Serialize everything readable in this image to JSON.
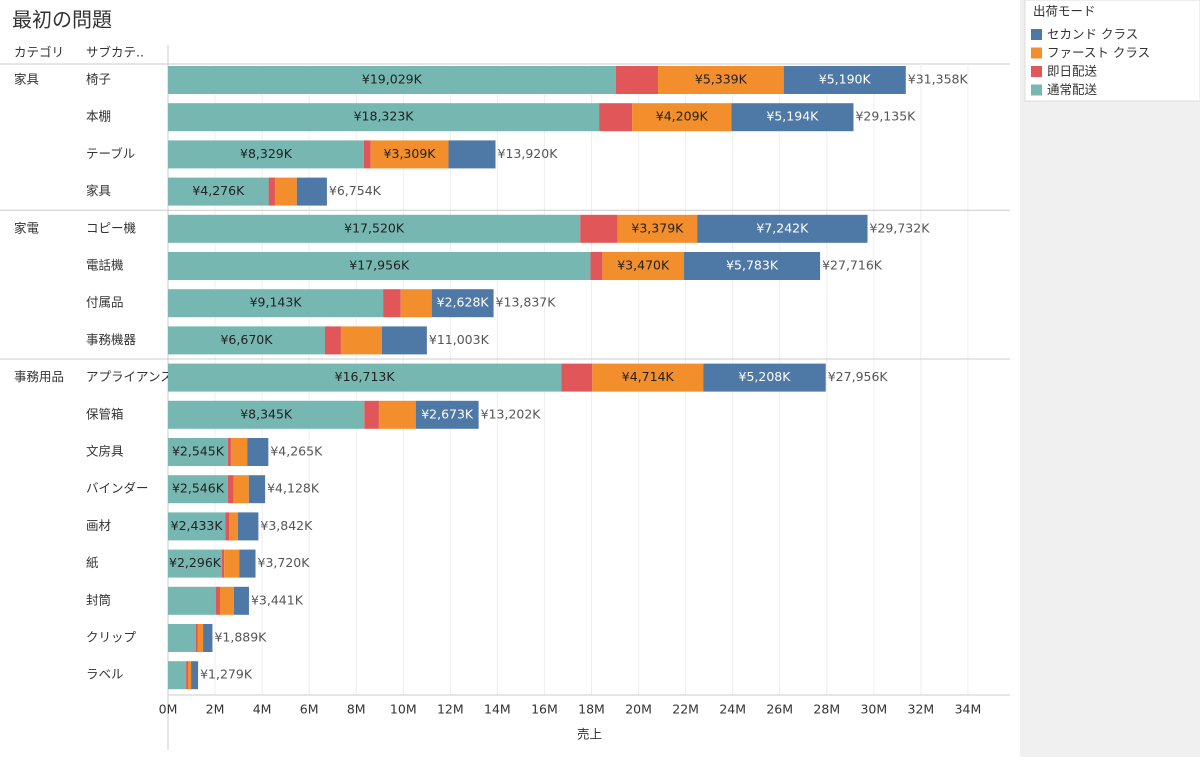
{
  "chart_data": {
    "type": "stacked-bar-horizontal",
    "title": "最初の問題",
    "header_labels": [
      "カテゴリ",
      "サブカテ.."
    ],
    "x_label": "売上",
    "legend_title": "出荷モード",
    "category_group": [
      "家具",
      null,
      null,
      null,
      "家電",
      null,
      null,
      null,
      "事務用品",
      null,
      null,
      null,
      null,
      null,
      null,
      null,
      null
    ],
    "categories": [
      "椅子",
      "本棚",
      "テーブル",
      "家具",
      "コピー機",
      "電話機",
      "付属品",
      "事務機器",
      "アプライアンス",
      "保管箱",
      "文房具",
      "バインダー",
      "画材",
      "紙",
      "封筒",
      "クリップ",
      "ラベル"
    ],
    "series": [
      {
        "name": "セカンド クラス",
        "color": "#4e79a7",
        "values": [
          5190000,
          5194000,
          2000000,
          1278000,
          7242000,
          5783000,
          2628000,
          1913000,
          5208000,
          2673000,
          900000,
          692000,
          869000,
          694000,
          641000,
          399000,
          299000
        ],
        "value_labels": [
          "¥5,190K",
          "¥5,194K",
          null,
          null,
          "¥7,242K",
          "¥5,783K",
          "¥2,628K",
          null,
          "¥5,208K",
          "¥2,673K",
          null,
          null,
          null,
          null,
          null,
          null,
          null
        ]
      },
      {
        "name": "ファースト クラス",
        "color": "#f28e2b",
        "values": [
          5339000,
          4209000,
          3309000,
          930000,
          3379000,
          3470000,
          1316000,
          1740000,
          4714000,
          1564000,
          690000,
          640000,
          380000,
          640000,
          590000,
          220000,
          130000
        ],
        "value_labels": [
          "¥5,339K",
          "¥4,209K",
          "¥3,309K",
          null,
          "¥3,379K",
          "¥3,470K",
          null,
          null,
          "¥4,714K",
          null,
          null,
          null,
          null,
          null,
          null,
          null,
          null
        ]
      },
      {
        "name": "即日配送",
        "color": "#e15759",
        "values": [
          1800000,
          1409000,
          282000,
          270000,
          1591000,
          507000,
          750000,
          680000,
          1321000,
          620000,
          130000,
          250000,
          160000,
          90000,
          170000,
          80000,
          80000
        ]
      },
      {
        "name": "通常配送",
        "color": "#76b7b2",
        "values": [
          19029000,
          18323000,
          8329000,
          4276000,
          17520000,
          17956000,
          9143000,
          6670000,
          16713000,
          8345000,
          2545000,
          2546000,
          2433000,
          2296000,
          2040000,
          1190000,
          770000
        ],
        "value_labels": [
          "¥19,029K",
          "¥18,323K",
          "¥8,329K",
          "¥4,276K",
          "¥17,520K",
          "¥17,956K",
          "¥9,143K",
          "¥6,670K",
          "¥16,713K",
          "¥8,345K",
          "¥2,545K",
          "¥2,546K",
          "¥2,433K",
          "¥2,296K",
          null,
          null,
          null
        ]
      }
    ],
    "totals": [
      31358000,
      29135000,
      13920000,
      6754000,
      29732000,
      27716000,
      13837000,
      11003000,
      27956000,
      13202000,
      4265000,
      4128000,
      3842000,
      3720000,
      3441000,
      1889000,
      1279000
    ],
    "total_labels": [
      "¥31,358K",
      "¥29,135K",
      "¥13,920K",
      "¥6,754K",
      "¥29,732K",
      "¥27,716K",
      "¥13,837K",
      "¥11,003K",
      "¥27,956K",
      "¥13,202K",
      "¥4,265K",
      "¥4,128K",
      "¥3,842K",
      "¥3,720K",
      "¥3,441K",
      "¥1,889K",
      "¥1,279K"
    ],
    "xlim": [
      0,
      36000000
    ],
    "xticks": [
      {
        "value": 0,
        "label": "0M"
      },
      {
        "value": 2000000,
        "label": "2M"
      },
      {
        "value": 4000000,
        "label": "4M"
      },
      {
        "value": 6000000,
        "label": "6M"
      },
      {
        "value": 8000000,
        "label": "8M"
      },
      {
        "value": 10000000,
        "label": "10M"
      },
      {
        "value": 12000000,
        "label": "12M"
      },
      {
        "value": 14000000,
        "label": "14M"
      },
      {
        "value": 16000000,
        "label": "16M"
      },
      {
        "value": 18000000,
        "label": "18M"
      },
      {
        "value": 20000000,
        "label": "20M"
      },
      {
        "value": 22000000,
        "label": "22M"
      },
      {
        "value": 24000000,
        "label": "24M"
      },
      {
        "value": 26000000,
        "label": "26M"
      },
      {
        "value": 28000000,
        "label": "28M"
      },
      {
        "value": 30000000,
        "label": "30M"
      },
      {
        "value": 32000000,
        "label": "32M"
      },
      {
        "value": 34000000,
        "label": "34M"
      }
    ],
    "grid": true,
    "legend_position": "right"
  }
}
